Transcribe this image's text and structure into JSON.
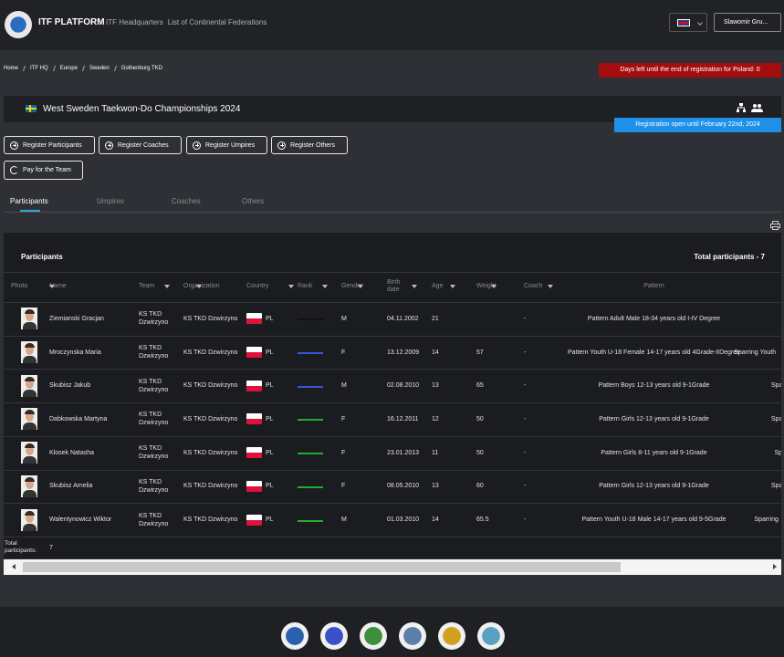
{
  "header": {
    "brand": "ITF PLATFORM",
    "nav": [
      "ITF Headquarters",
      "List of Continental Federations"
    ],
    "user": "Slawomir Gru..."
  },
  "breadcrumb": [
    "Home",
    "ITF HQ",
    "Europe",
    "Sweden",
    "Gothenburg TKD"
  ],
  "alert": "Days left until the end of registration for Poland: 0",
  "event": {
    "title": "West Sweden Taekwon-Do Championships 2024",
    "registration": "Registration open until February 22nd, 2024"
  },
  "buttons": [
    "Register Participants",
    "Register Coaches",
    "Register Umpires",
    "Register Others",
    "Pay for the Team"
  ],
  "tabs": [
    "Participants",
    "Umpires",
    "Coaches",
    "Others"
  ],
  "table": {
    "heading": "Participants",
    "total": "Total participants - 7",
    "columns": [
      "Photo",
      "Name",
      "Team",
      "Organization",
      "Country",
      "Rank",
      "Gender",
      "Birth date",
      "Age",
      "Weight",
      "Coach",
      "Pattern"
    ],
    "rows": [
      {
        "name": "Ziemianski Gracjan",
        "team": "KS TKD Dzwirzyno",
        "organization": "KS TKD Dzwirzyno",
        "country": "PL",
        "rank_color": "#111111",
        "gender": "M",
        "birth_date": "04.11.2002",
        "age": 21,
        "weight": null,
        "coach": "-",
        "pattern": "Pattern Adult Male 18-34 years old I-IV Degree",
        "sparring": null
      },
      {
        "name": "Mroczynska Maria",
        "team": "KS TKD Dzwirzyno",
        "organization": "KS TKD Dzwirzyno",
        "country": "PL",
        "rank_color": "#3a55d6",
        "gender": "F",
        "birth_date": "13.12.2009",
        "age": 14,
        "weight": 57,
        "coach": "-",
        "pattern": "Pattern Youth U-18 Female 14-17 years old 4Grade-IIDegree",
        "sparring": "Sparring Youth"
      },
      {
        "name": "Skubisz Jakub",
        "team": "KS TKD Dzwirzyno",
        "organization": "KS TKD Dzwirzyno",
        "country": "PL",
        "rank_color": "#3a55d6",
        "gender": "M",
        "birth_date": "02.08.2010",
        "age": 13,
        "weight": 65,
        "coach": "-",
        "pattern": "Pattern Boys 12-13 years old 9-1Grade",
        "sparring": "Spa"
      },
      {
        "name": "Dabkowska Martyna",
        "team": "KS TKD Dzwirzyno",
        "organization": "KS TKD Dzwirzyno",
        "country": "PL",
        "rank_color": "#1fae2e",
        "gender": "F",
        "birth_date": "16.12.2011",
        "age": 12,
        "weight": 50,
        "coach": "-",
        "pattern": "Pattern Girls 12-13 years old 9-1Grade",
        "sparring": "Spa"
      },
      {
        "name": "Klosek Natasha",
        "team": "KS TKD Dzwirzyno",
        "organization": "KS TKD Dzwirzyno",
        "country": "PL",
        "rank_color": "#1fae2e",
        "gender": "F",
        "birth_date": "23.01.2013",
        "age": 11,
        "weight": 50,
        "coach": "-",
        "pattern": "Pattern Girls 8-11 years old 9-1Grade",
        "sparring": "Sp"
      },
      {
        "name": "Skubisz Amelia",
        "team": "KS TKD Dzwirzyno",
        "organization": "KS TKD Dzwirzyno",
        "country": "PL",
        "rank_color": "#1fae2e",
        "gender": "F",
        "birth_date": "08.05.2010",
        "age": 13,
        "weight": 60,
        "coach": "-",
        "pattern": "Pattern Girls 12-13 years old 9-1Grade",
        "sparring": "Spa"
      },
      {
        "name": "Walentynowicz Wiktor",
        "team": "KS TKD Dzwirzyno",
        "organization": "KS TKD Dzwirzyno",
        "country": "PL",
        "rank_color": "#1fae2e",
        "gender": "M",
        "birth_date": "01.03.2010",
        "age": 14,
        "weight": 65.5,
        "coach": "-",
        "pattern": "Pattern Youth U-18 Male 14-17 years old 9-5Grade",
        "sparring": "Sparring"
      }
    ],
    "footer": {
      "label": "Total participants:",
      "value": 7
    }
  }
}
